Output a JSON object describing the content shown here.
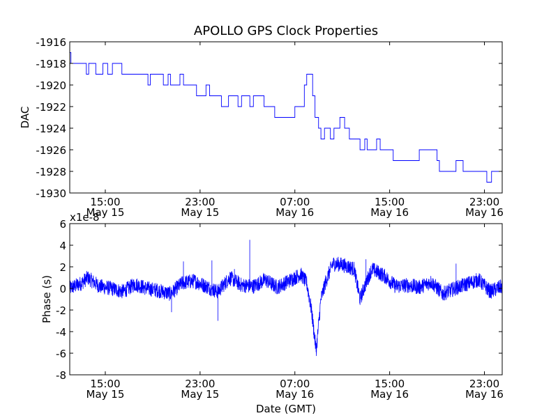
{
  "figure": {
    "title": "APOLLO GPS Clock Properties",
    "background": "#ffffff",
    "line_color": "#0000ff"
  },
  "chart_data": [
    {
      "type": "line",
      "name": "dac",
      "ylabel": "DAC",
      "xlabel": "",
      "x_unit": "hours since May 15 11:00 GMT",
      "xlim": [
        0,
        36.5
      ],
      "ylim": [
        -1930,
        -1916
      ],
      "yticks": [
        -1930,
        -1928,
        -1926,
        -1924,
        -1922,
        -1920,
        -1918,
        -1916
      ],
      "ytick_labels": [
        "-1930",
        "-1928",
        "-1926",
        "-1924",
        "-1922",
        "-1920",
        "-1918",
        "-1916"
      ],
      "xticks": [
        {
          "t": 3,
          "time": "15:00",
          "date": "May 15"
        },
        {
          "t": 11,
          "time": "23:00",
          "date": "May 15"
        },
        {
          "t": 19,
          "time": "07:00",
          "date": "May 16"
        },
        {
          "t": 27,
          "time": "15:00",
          "date": "May 16"
        },
        {
          "t": 35,
          "time": "23:00",
          "date": "May 16"
        }
      ],
      "series": [
        {
          "name": "DAC",
          "x": [
            0,
            0.1,
            0.1,
            1.4,
            1.4,
            1.6,
            1.6,
            2.2,
            2.2,
            2.8,
            2.8,
            3.2,
            3.2,
            3.6,
            3.6,
            4.4,
            4.4,
            4.8,
            4.8,
            6.6,
            6.6,
            6.8,
            6.8,
            7.9,
            7.9,
            8.3,
            8.3,
            8.5,
            8.5,
            9.3,
            9.3,
            9.6,
            9.6,
            10.3,
            10.3,
            10.7,
            10.7,
            11.5,
            11.5,
            11.8,
            11.8,
            12.2,
            12.2,
            12.8,
            12.8,
            13.4,
            13.4,
            14.2,
            14.2,
            14.5,
            14.5,
            15.2,
            15.2,
            15.5,
            15.5,
            16.4,
            16.4,
            16.7,
            16.7,
            17.3,
            17.3,
            19.0,
            19.0,
            19.8,
            19.8,
            20.0,
            20.0,
            20.5,
            20.5,
            20.7,
            20.7,
            21.0,
            21.0,
            21.2,
            21.2,
            21.5,
            21.5,
            22.0,
            22.0,
            22.3,
            22.3,
            22.8,
            22.8,
            23.2,
            23.2,
            23.6,
            23.6,
            24.5,
            24.5,
            24.9,
            24.9,
            25.1,
            25.1,
            25.9,
            25.9,
            26.2,
            26.2,
            27.0,
            27.0,
            27.3,
            27.3,
            28.9,
            28.9,
            29.5,
            29.5,
            31.0,
            31.0,
            31.2,
            31.2,
            32.6,
            32.6,
            33.2,
            33.2,
            34.4,
            34.4,
            35.2,
            35.2,
            35.6,
            35.6,
            36.5
          ],
          "y": [
            -1917,
            -1917,
            -1918,
            -1918,
            -1919,
            -1919,
            -1918,
            -1918,
            -1919,
            -1919,
            -1918,
            -1918,
            -1919,
            -1919,
            -1918,
            -1918,
            -1919,
            -1919,
            -1919,
            -1919,
            -1920,
            -1920,
            -1919,
            -1919,
            -1920,
            -1920,
            -1919,
            -1919,
            -1920,
            -1920,
            -1919,
            -1919,
            -1920,
            -1920,
            -1920,
            -1920,
            -1921,
            -1921,
            -1920,
            -1920,
            -1921,
            -1921,
            -1921,
            -1921,
            -1922,
            -1922,
            -1921,
            -1921,
            -1922,
            -1922,
            -1921,
            -1921,
            -1922,
            -1922,
            -1921,
            -1921,
            -1922,
            -1922,
            -1922,
            -1922,
            -1923,
            -1923,
            -1922,
            -1922,
            -1920,
            -1920,
            -1919,
            -1919,
            -1921,
            -1921,
            -1923,
            -1923,
            -1924,
            -1924,
            -1925,
            -1925,
            -1924,
            -1924,
            -1925,
            -1925,
            -1924,
            -1924,
            -1923,
            -1923,
            -1924,
            -1924,
            -1925,
            -1925,
            -1926,
            -1926,
            -1925,
            -1925,
            -1926,
            -1926,
            -1925,
            -1925,
            -1926,
            -1926,
            -1926,
            -1926,
            -1927,
            -1927,
            -1927,
            -1927,
            -1926,
            -1926,
            -1927,
            -1927,
            -1928,
            -1928,
            -1927,
            -1927,
            -1928,
            -1928,
            -1928,
            -1928,
            -1929,
            -1929,
            -1928,
            -1928
          ]
        }
      ]
    },
    {
      "type": "line",
      "name": "phase",
      "ylabel": "Phase (s)",
      "xlabel": "Date (GMT)",
      "offset_text": "x1e-8",
      "y_scale": 1e-08,
      "x_unit": "hours since May 15 11:00 GMT",
      "xlim": [
        0,
        36.5
      ],
      "ylim": [
        -8,
        6
      ],
      "yticks": [
        -8,
        -6,
        -4,
        -2,
        0,
        2,
        4,
        6
      ],
      "ytick_labels": [
        "-8",
        "-6",
        "-4",
        "-2",
        "0",
        "2",
        "4",
        "6"
      ],
      "xticks": [
        {
          "t": 3,
          "time": "15:00",
          "date": "May 15"
        },
        {
          "t": 11,
          "time": "23:00",
          "date": "May 15"
        },
        {
          "t": 19,
          "time": "07:00",
          "date": "May 16"
        },
        {
          "t": 27,
          "time": "15:00",
          "date": "May 16"
        },
        {
          "t": 35,
          "time": "23:00",
          "date": "May 16"
        }
      ],
      "series": [
        {
          "name": "Phase",
          "x": [
            0,
            1.0,
            1.5,
            2.5,
            3.5,
            4.5,
            5.5,
            6.5,
            7.5,
            8.5,
            9.5,
            10.5,
            11.5,
            12.5,
            13.5,
            14.5,
            15.5,
            16.5,
            17.5,
            18.5,
            19.5,
            20.0,
            20.4,
            20.8,
            21.2,
            21.6,
            22.2,
            23.0,
            24.0,
            24.5,
            25.0,
            25.5,
            26.5,
            27.5,
            28.5,
            29.5,
            30.5,
            31.5,
            32.5,
            33.5,
            34.5,
            35.5,
            36.5
          ],
          "y": [
            0,
            0.5,
            1.0,
            0.2,
            0,
            -0.3,
            0.4,
            0,
            -0.2,
            -0.5,
            0.5,
            0.7,
            0.2,
            -0.3,
            1.0,
            0.3,
            0.2,
            0.8,
            0.1,
            0.7,
            1.3,
            0.5,
            -2.0,
            -5.8,
            -1.0,
            0.6,
            2.3,
            2.2,
            1.8,
            -1.0,
            0.5,
            1.8,
            1.2,
            0.2,
            0.3,
            0.1,
            0.6,
            -0.5,
            0,
            0.4,
            0.8,
            -0.3,
            0.2
          ]
        }
      ],
      "spikes": [
        {
          "x": 15.2,
          "y": 4.5
        },
        {
          "x": 13.9,
          "y": 1.8
        },
        {
          "x": 12.5,
          "y": -3.0
        },
        {
          "x": 8.6,
          "y": -2.2
        },
        {
          "x": 9.6,
          "y": 2.5
        },
        {
          "x": 12.0,
          "y": 2.6
        },
        {
          "x": 25.0,
          "y": 2.7
        },
        {
          "x": 32.6,
          "y": 2.3
        }
      ]
    }
  ]
}
